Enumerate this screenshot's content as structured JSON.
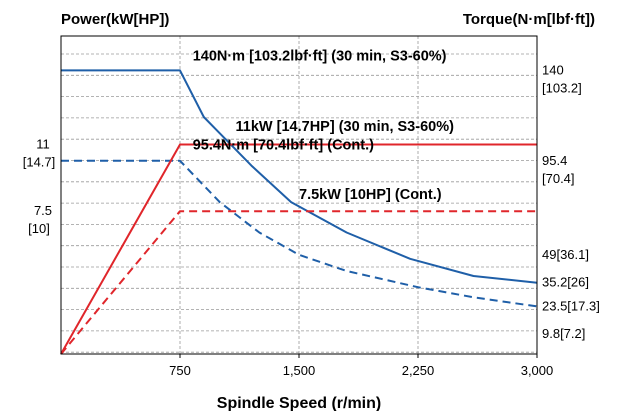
{
  "chart_data": {
    "type": "line",
    "title": "",
    "xlabel": "Spindle Speed (r/min)",
    "ylabel_left": "Power(kW[HP])",
    "ylabel_right": "Torque(N·m[lbf·ft])",
    "xlim": [
      0,
      3000
    ],
    "x_ticks": [
      {
        "value": 750,
        "label": "750"
      },
      {
        "value": 1500,
        "label": "1,500"
      },
      {
        "value": 2250,
        "label": "2,250"
      },
      {
        "value": 3000,
        "label": "3,000"
      }
    ],
    "power_axis": {
      "ylim": [
        0,
        16.7
      ],
      "ticks": [
        {
          "value": 11,
          "line1": "11",
          "line2": "[14.7]"
        },
        {
          "value": 7.5,
          "line1": "7.5",
          "line2": "[10]"
        }
      ]
    },
    "torque_axis": {
      "ylim": [
        0,
        157
      ],
      "ticks": [
        {
          "value": 140,
          "line1": "140",
          "line2": "[103.2]"
        },
        {
          "value": 95.4,
          "line1": "95.4",
          "line2": "[70.4]"
        },
        {
          "value": 49,
          "line1": "49[36.1]",
          "line2": ""
        },
        {
          "value": 35.2,
          "line1": "35.2[26]",
          "line2": ""
        },
        {
          "value": 23.5,
          "line1": "23.5[17.3]",
          "line2": ""
        },
        {
          "value": 9.8,
          "line1": "9.8[7.2]",
          "line2": ""
        }
      ]
    },
    "grid": true,
    "series": [
      {
        "axis": "torque",
        "color": "#1f5fa8",
        "dash": false,
        "points": [
          [
            0,
            140
          ],
          [
            750,
            140
          ],
          [
            900,
            117
          ],
          [
            1200,
            93
          ],
          [
            1450,
            75
          ],
          [
            1800,
            60
          ],
          [
            2200,
            47
          ],
          [
            2600,
            38.5
          ],
          [
            3000,
            35.2
          ]
        ]
      },
      {
        "axis": "torque",
        "color": "#1f5fa8",
        "dash": true,
        "points": [
          [
            0,
            95.4
          ],
          [
            750,
            95.4
          ],
          [
            1000,
            75
          ],
          [
            1250,
            60
          ],
          [
            1500,
            49
          ],
          [
            1800,
            41
          ],
          [
            2250,
            33
          ],
          [
            2600,
            28
          ],
          [
            3000,
            23.5
          ]
        ]
      },
      {
        "axis": "power",
        "color": "#e0262b",
        "dash": false,
        "points": [
          [
            0,
            0
          ],
          [
            750,
            11
          ],
          [
            3000,
            11
          ]
        ]
      },
      {
        "axis": "power",
        "color": "#e0262b",
        "dash": true,
        "points": [
          [
            0,
            0
          ],
          [
            750,
            7.5
          ],
          [
            3000,
            7.5
          ]
        ]
      }
    ],
    "annotations": [
      {
        "text": "140N·m [103.2lbf·ft] (30 min, S3-60%)",
        "x": 830,
        "y_axis": "torque",
        "y": 145
      },
      {
        "text": "11kW [14.7HP] (30 min, S3-60%)",
        "x": 1100,
        "y_axis": "power",
        "y": 11.7
      },
      {
        "text": "95.4N·m [70.4lbf·ft] (Cont.)",
        "x": 830,
        "y_axis": "torque",
        "y": 101
      },
      {
        "text": "7.5kW [10HP] (Cont.)",
        "x": 1500,
        "y_axis": "power",
        "y": 8.15
      }
    ]
  }
}
